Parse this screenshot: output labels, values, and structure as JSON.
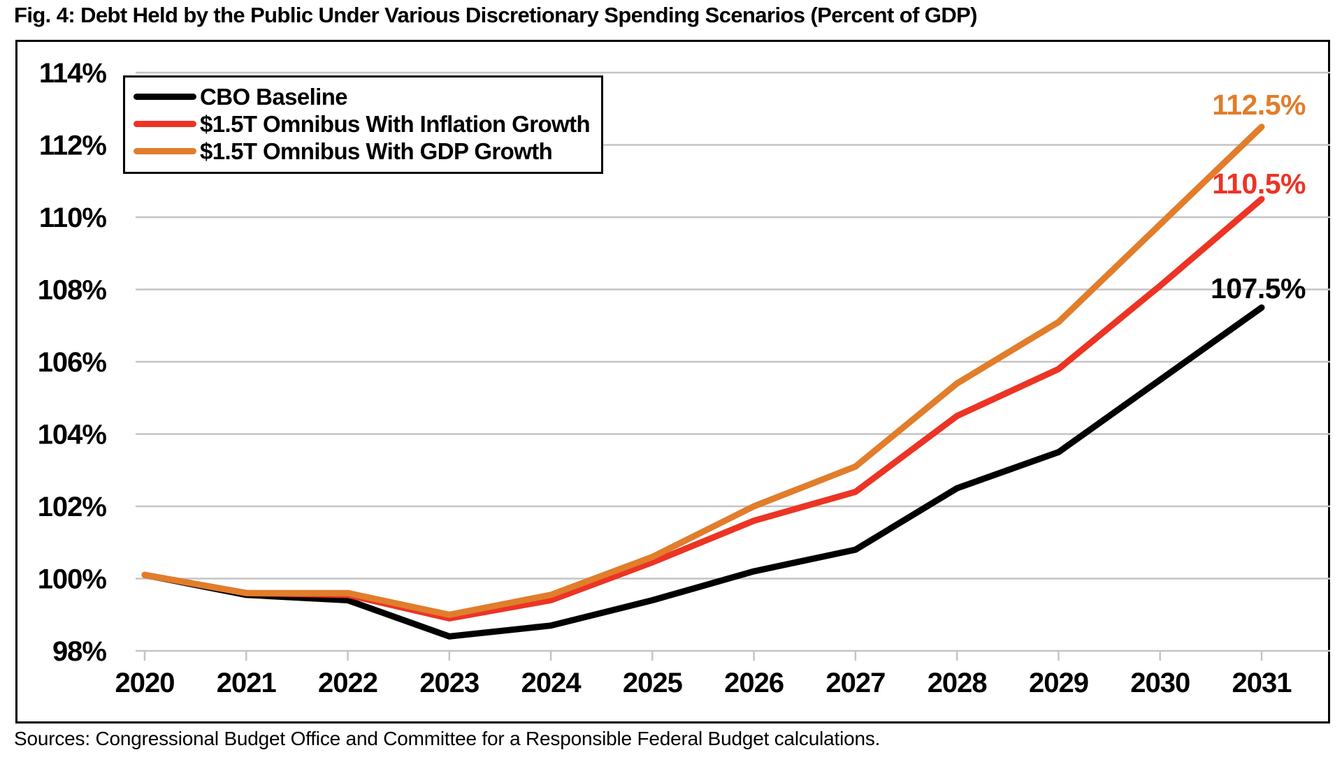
{
  "title": "Fig. 4: Debt Held by the Public Under Various Discretionary Spending Scenarios (Percent of GDP)",
  "source_note": "Sources: Congressional Budget Office and Committee for a Responsible Federal Budget calculations.",
  "colors": {
    "baseline": "#000000",
    "inflation_growth": "#EC3425",
    "gdp_growth": "#E17D2B",
    "gridline": "#C4C4C4",
    "frame": "#000000"
  },
  "legend": {
    "items": [
      {
        "label": "CBO Baseline",
        "color": "#000000"
      },
      {
        "label": "$1.5T Omnibus With Inflation Growth",
        "color": "#EC3425"
      },
      {
        "label": "$1.5T Omnibus With GDP Growth",
        "color": "#E17D2B"
      }
    ]
  },
  "end_labels": [
    {
      "text": "112.5%",
      "color": "#E17D2B"
    },
    {
      "text": "110.5%",
      "color": "#EC3425"
    },
    {
      "text": "107.5%",
      "color": "#000000"
    }
  ],
  "chart_data": {
    "type": "line",
    "title": "Fig. 4: Debt Held by the Public Under Various Discretionary Spending Scenarios (Percent of GDP)",
    "categories": [
      "2020",
      "2021",
      "2022",
      "2023",
      "2024",
      "2025",
      "2026",
      "2027",
      "2028",
      "2029",
      "2030",
      "2031"
    ],
    "series": [
      {
        "name": "CBO Baseline",
        "color": "#000000",
        "values": [
          100.1,
          99.55,
          99.4,
          98.4,
          98.7,
          99.4,
          100.2,
          100.8,
          102.5,
          103.5,
          105.5,
          107.5
        ],
        "end_label": "107.5%"
      },
      {
        "name": "$1.5T Omnibus With Inflation Growth",
        "color": "#EC3425",
        "values": [
          100.1,
          99.6,
          99.55,
          98.9,
          99.4,
          100.45,
          101.6,
          102.4,
          104.5,
          105.8,
          108.1,
          110.5
        ],
        "end_label": "110.5%"
      },
      {
        "name": "$1.5T Omnibus With GDP Growth",
        "color": "#E17D2B",
        "values": [
          100.1,
          99.6,
          99.6,
          99.0,
          99.55,
          100.6,
          102.0,
          103.1,
          105.4,
          107.1,
          109.8,
          112.5
        ],
        "end_label": "112.5%"
      }
    ],
    "ylim": [
      98,
      114
    ],
    "ytick_step": 2,
    "ytick_labels": [
      "98%",
      "100%",
      "102%",
      "104%",
      "106%",
      "108%",
      "110%",
      "112%",
      "114%"
    ],
    "xlabel": "",
    "ylabel": "",
    "grid": "horizontal",
    "legend_position": "top-left"
  }
}
